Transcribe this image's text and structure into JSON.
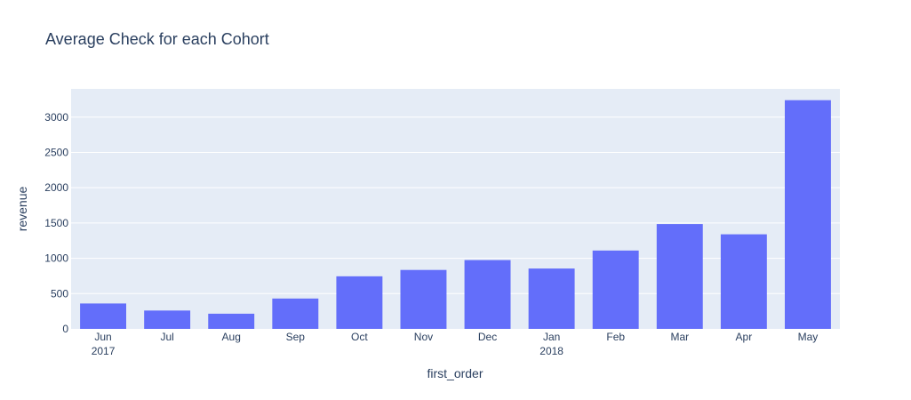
{
  "chart_data": {
    "type": "bar",
    "title": "Average Check for each Cohort",
    "xlabel": "first_order",
    "ylabel": "revenue",
    "categories": [
      "Jun",
      "Jul",
      "Aug",
      "Sep",
      "Oct",
      "Nov",
      "Dec",
      "Jan",
      "Feb",
      "Mar",
      "Apr",
      "May"
    ],
    "category_sublabels": [
      "2017",
      "",
      "",
      "",
      "",
      "",
      "",
      "2018",
      "",
      "",
      "",
      ""
    ],
    "dates": [
      "2017-06",
      "2017-07",
      "2017-08",
      "2017-09",
      "2017-10",
      "2017-11",
      "2017-12",
      "2018-01",
      "2018-02",
      "2018-03",
      "2018-04",
      "2018-05"
    ],
    "values": [
      360,
      260,
      215,
      430,
      745,
      835,
      975,
      855,
      1110,
      1485,
      1340,
      3240
    ],
    "ylim": [
      0,
      3400
    ],
    "yticks": [
      0,
      500,
      1000,
      1500,
      2000,
      2500,
      3000
    ],
    "grid": true,
    "colors": {
      "bar": "#636efa",
      "plot_bg": "#e5ecf6",
      "text": "#2a3f5f",
      "grid": "#ffffff"
    }
  }
}
